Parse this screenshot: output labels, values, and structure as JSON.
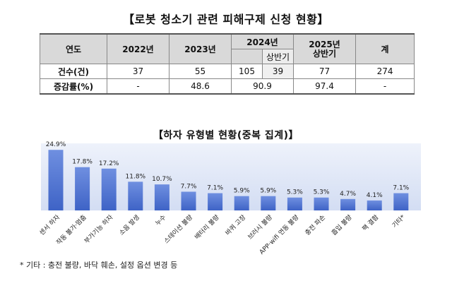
{
  "main_title": "【로봇 청소기 관련 피해구제 신청 현황】",
  "table": {
    "headers": {
      "col0": "연도",
      "y2022": "2022년",
      "y2023": "2023년",
      "y2024": "2024년",
      "y2024_sub": "상반기",
      "y2025": "2025년 상반기",
      "total": "계"
    },
    "rows": [
      {
        "label": "건수(건)",
        "y2022": "37",
        "y2023": "55",
        "y2024": "105",
        "y2024_sub": "39",
        "y2025": "77",
        "total": "274"
      },
      {
        "label": "증감률(%)",
        "y2022": "-",
        "y2023": "48.6",
        "y2024": "90.9",
        "y2025": "97.4",
        "total": "-"
      }
    ]
  },
  "chart_data": {
    "type": "bar",
    "title": "【하자 유형별 현황(중복 집계)】",
    "categories": [
      "센서 하자",
      "작동 불가·멈춤",
      "부가기능 하자",
      "소음 발생",
      "누수",
      "스테이션 불량",
      "배터리 불량",
      "바퀴 고장",
      "브러시 불량",
      "APP·wifi 연동 불량",
      "충전 파손",
      "흡입 불량",
      "팩 결함",
      "기타*"
    ],
    "values": [
      24.9,
      17.8,
      17.2,
      11.8,
      10.7,
      7.7,
      7.1,
      5.9,
      5.9,
      5.3,
      5.3,
      4.7,
      4.1,
      7.1
    ],
    "value_labels": [
      "24.9%",
      "17.8%",
      "17.2%",
      "11.8%",
      "10.7%",
      "7.7%",
      "7.1%",
      "5.9%",
      "5.9%",
      "5.3%",
      "5.3%",
      "4.7%",
      "4.1%",
      "7.1%"
    ],
    "unit": "%",
    "ylim": [
      0,
      27
    ],
    "colors": {
      "bar_top": "#6f8fe0",
      "bar_bottom": "#3e63c6",
      "bg_top": "#eef2fb",
      "bg_bottom": "#d3ddf3"
    }
  },
  "footnote": "* 기타 : 충전 불량, 바닥 훼손, 설정 옵션 변경 등"
}
